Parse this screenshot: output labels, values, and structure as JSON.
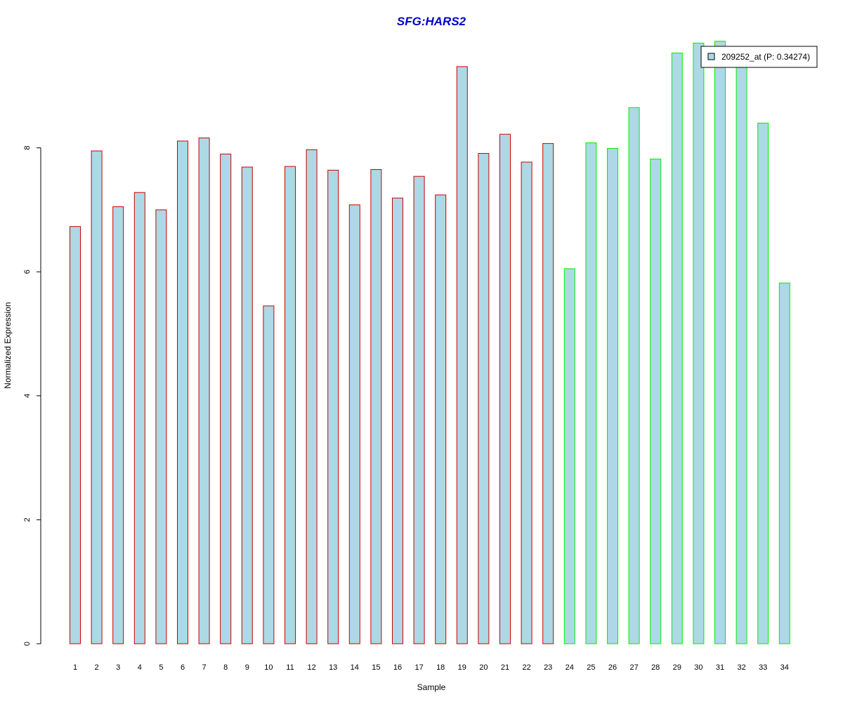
{
  "colors": {
    "title": "#0000CC",
    "bar_fill": "#ADD8E6",
    "group1_border": "#CC0000",
    "group2_border": "#00EE00",
    "axis": "#000000"
  },
  "chart_data": {
    "type": "bar",
    "title": "SFG:HARS2",
    "xlabel": "Sample",
    "ylabel": "Normalized Expression",
    "ylim": [
      0,
      9.8
    ],
    "yticks": [
      0,
      2,
      4,
      6,
      8
    ],
    "grid": false,
    "legend": {
      "placement": "top-right",
      "entries": [
        "209252_at (P: 0.34274)"
      ]
    },
    "categories": [
      "1",
      "2",
      "3",
      "4",
      "5",
      "6",
      "7",
      "8",
      "9",
      "10",
      "11",
      "12",
      "13",
      "14",
      "15",
      "16",
      "17",
      "18",
      "19",
      "20",
      "21",
      "22",
      "23",
      "24",
      "25",
      "26",
      "27",
      "28",
      "29",
      "30",
      "31",
      "32",
      "33",
      "34"
    ],
    "values": [
      6.73,
      7.95,
      7.05,
      7.28,
      7.0,
      8.11,
      8.16,
      7.9,
      7.69,
      5.45,
      7.7,
      7.97,
      7.64,
      7.08,
      7.65,
      7.19,
      7.54,
      7.24,
      9.31,
      7.91,
      8.22,
      7.77,
      8.07,
      6.05,
      8.08,
      7.99,
      8.65,
      7.82,
      9.53,
      9.69,
      9.72,
      9.45,
      8.4,
      5.82
    ],
    "groups": [
      1,
      1,
      1,
      1,
      1,
      1,
      1,
      1,
      1,
      1,
      1,
      1,
      1,
      1,
      1,
      1,
      1,
      1,
      1,
      1,
      1,
      1,
      1,
      2,
      2,
      2,
      2,
      2,
      2,
      2,
      2,
      2,
      2,
      2
    ]
  }
}
